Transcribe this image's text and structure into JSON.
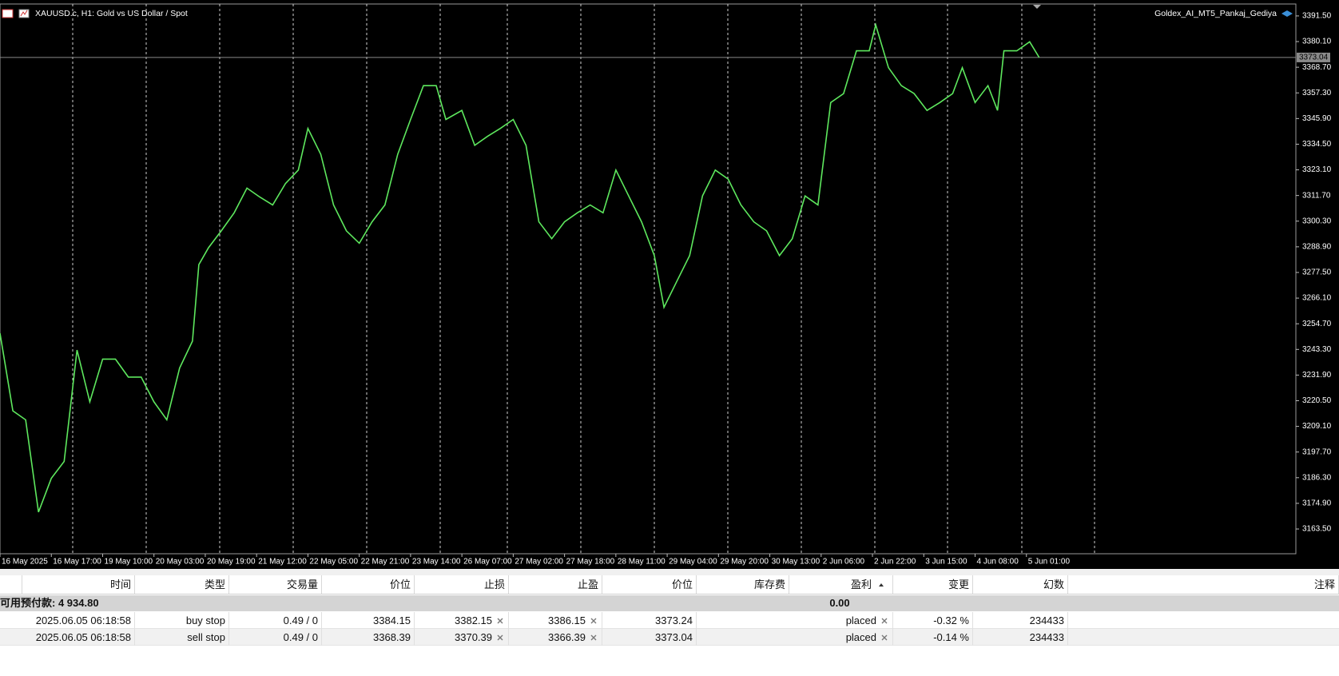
{
  "chart_data": {
    "type": "line",
    "title": "XAUUSD.c, H1:  Gold vs US Dollar / Spot",
    "expert": "Goldex_AI_MT5_Pankaj_Gediya",
    "color": "#5ee85e",
    "x": [
      0,
      4,
      8,
      12,
      16,
      20,
      24,
      28,
      32,
      36,
      40,
      44,
      48,
      52,
      56,
      60,
      62,
      65,
      69,
      73,
      77,
      81,
      85,
      89,
      93,
      96,
      100,
      104,
      108,
      112,
      116,
      120,
      124,
      128,
      132,
      136,
      139,
      144,
      148,
      152,
      156,
      160,
      164,
      168,
      172,
      176,
      180,
      184,
      188,
      192,
      196,
      200,
      204,
      207,
      211,
      215,
      219,
      223,
      227,
      231,
      235,
      239,
      243,
      247,
      251,
      255,
      259,
      263,
      267,
      271,
      273,
      277,
      281,
      285,
      289,
      293,
      297,
      300,
      304,
      308,
      311,
      313,
      317,
      321,
      324
    ],
    "values": [
      3250.5,
      3216,
      3212,
      3171,
      3186,
      3193.5,
      3243,
      3220,
      3239,
      3239,
      3231,
      3231,
      3220,
      3212,
      3235,
      3247,
      3281,
      3288.5,
      3296,
      3304,
      3315,
      3311,
      3307.5,
      3317,
      3323,
      3341.5,
      3330,
      3307.5,
      3296,
      3290.5,
      3300,
      3307.5,
      3330,
      3345.5,
      3360.5,
      3360.5,
      3345.5,
      3349.5,
      3334,
      3338,
      3341.5,
      3345.5,
      3334,
      3300,
      3292.5,
      3300,
      3304,
      3307.5,
      3304,
      3323,
      3311.5,
      3300,
      3285,
      3262,
      3273.5,
      3285,
      3311.5,
      3323,
      3319,
      3307.5,
      3300,
      3296,
      3285,
      3292.5,
      3311.5,
      3307.5,
      3353,
      3357,
      3376,
      3376,
      3387.5,
      3368.5,
      3360.5,
      3357,
      3349.5,
      3353,
      3357,
      3368.5,
      3353,
      3360.5,
      3349.5,
      3376,
      3376,
      3380,
      3373
    ],
    "xlim": [
      0,
      404
    ],
    "xticks": [
      {
        "value": 0,
        "label": "16 May 2025"
      },
      {
        "value": 16,
        "label": "16 May 17:00"
      },
      {
        "value": 32,
        "label": "19 May 10:00"
      },
      {
        "value": 48,
        "label": "20 May 03:00"
      },
      {
        "value": 64,
        "label": "20 May 19:00"
      },
      {
        "value": 80,
        "label": "21 May 12:00"
      },
      {
        "value": 96,
        "label": "22 May 05:00"
      },
      {
        "value": 112,
        "label": "22 May 21:00"
      },
      {
        "value": 128,
        "label": "23 May 14:00"
      },
      {
        "value": 144,
        "label": "26 May 07:00"
      },
      {
        "value": 160,
        "label": "27 May 02:00"
      },
      {
        "value": 176,
        "label": "27 May 18:00"
      },
      {
        "value": 192,
        "label": "28 May 11:00"
      },
      {
        "value": 208,
        "label": "29 May 04:00"
      },
      {
        "value": 224,
        "label": "29 May 20:00"
      },
      {
        "value": 240,
        "label": "30 May 13:00"
      },
      {
        "value": 256,
        "label": "2 Jun 06:00"
      },
      {
        "value": 272,
        "label": "2 Jun 22:00"
      },
      {
        "value": 288,
        "label": "3 Jun 15:00"
      },
      {
        "value": 304,
        "label": "4 Jun 08:00"
      },
      {
        "value": 320,
        "label": "5 Jun 01:00"
      }
    ],
    "ylim": [
      3152.5,
      3396.8
    ],
    "yticks": [
      {
        "value": 3391.5,
        "label": "3391.50"
      },
      {
        "value": 3380.1,
        "label": "3380.10"
      },
      {
        "value": 3368.7,
        "label": "3368.70"
      },
      {
        "value": 3357.3,
        "label": "3357.30"
      },
      {
        "value": 3345.9,
        "label": "3345.90"
      },
      {
        "value": 3334.5,
        "label": "3334.50"
      },
      {
        "value": 3323.1,
        "label": "3323.10"
      },
      {
        "value": 3311.7,
        "label": "3311.70"
      },
      {
        "value": 3300.3,
        "label": "3300.30"
      },
      {
        "value": 3288.9,
        "label": "3288.90"
      },
      {
        "value": 3277.5,
        "label": "3277.50"
      },
      {
        "value": 3266.1,
        "label": "3266.10"
      },
      {
        "value": 3254.7,
        "label": "3254.70"
      },
      {
        "value": 3243.3,
        "label": "3243.30"
      },
      {
        "value": 3231.9,
        "label": "3231.90"
      },
      {
        "value": 3220.5,
        "label": "3220.50"
      },
      {
        "value": 3209.1,
        "label": "3209.10"
      },
      {
        "value": 3197.7,
        "label": "3197.70"
      },
      {
        "value": 3186.3,
        "label": "3186.30"
      },
      {
        "value": 3174.9,
        "label": "3174.90"
      },
      {
        "value": 3163.5,
        "label": "3163.50"
      }
    ],
    "current_price": 3373.04
  },
  "table": {
    "headers": [
      "时间",
      "类型",
      "交易量",
      "价位",
      "止损",
      "止盈",
      "价位",
      "库存费",
      "盈利",
      "变更",
      "幻数",
      "注释"
    ],
    "summary": {
      "free_margin": "可用预付款: 4 934.80",
      "profit": "0.00"
    },
    "rows": [
      {
        "time": "2025.06.05 06:18:58",
        "type": "buy stop",
        "volume": "0.49 / 0",
        "price": "3384.15",
        "sl": "3382.15",
        "tp": "3386.15",
        "market_price": "3373.24",
        "profit": "placed",
        "change": "-0.32 %",
        "magic": "234433"
      },
      {
        "time": "2025.06.05 06:18:58",
        "type": "sell stop",
        "volume": "0.49 / 0",
        "price": "3368.39",
        "sl": "3370.39",
        "tp": "3366.39",
        "market_price": "3373.04",
        "profit": "placed",
        "change": "-0.14 %",
        "magic": "234433"
      }
    ]
  }
}
